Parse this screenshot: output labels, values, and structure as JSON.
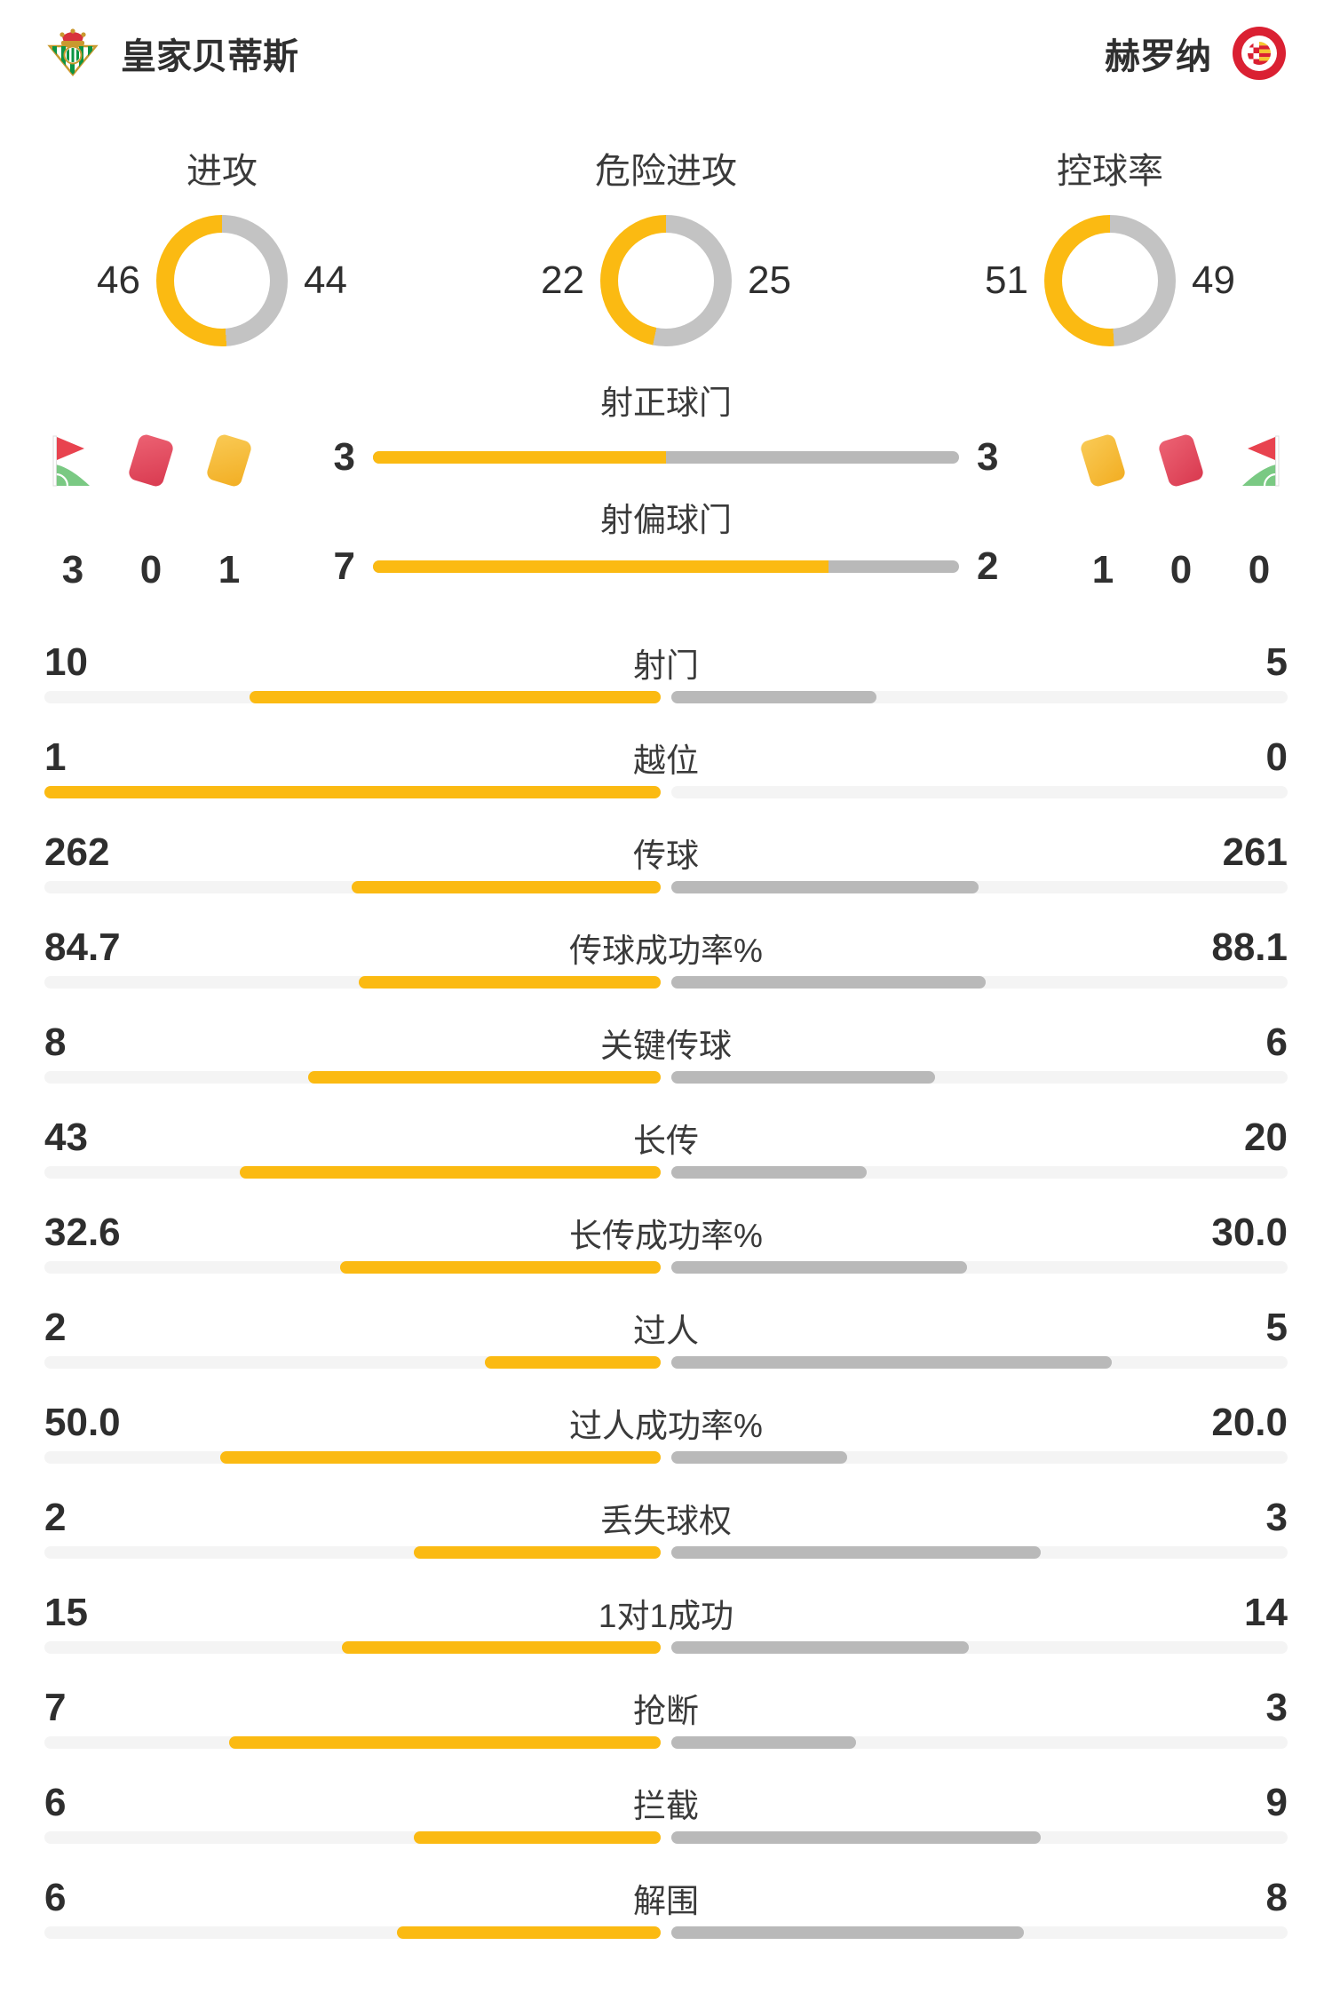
{
  "chart_data": {
    "type": "bar",
    "teams": {
      "home": "皇家贝蒂斯",
      "away": "赫罗纳"
    },
    "donuts": [
      {
        "label": "进攻",
        "home": 46,
        "away": 44
      },
      {
        "label": "危险进攻",
        "home": 22,
        "away": 25
      },
      {
        "label": "控球率",
        "home": 51,
        "away": 49
      }
    ],
    "discipline": {
      "home": {
        "corners": 3,
        "red_cards": 0,
        "yellow_cards": 1
      },
      "away": {
        "yellow_cards": 1,
        "red_cards": 0,
        "corners": 0
      }
    },
    "shots": [
      {
        "label": "射正球门",
        "home": 3,
        "away": 3
      },
      {
        "label": "射偏球门",
        "home": 7,
        "away": 2
      }
    ],
    "stats": [
      {
        "label": "射门",
        "home": "10",
        "away": "5"
      },
      {
        "label": "越位",
        "home": "1",
        "away": "0"
      },
      {
        "label": "传球",
        "home": "262",
        "away": "261"
      },
      {
        "label": "传球成功率%",
        "home": "84.7",
        "away": "88.1"
      },
      {
        "label": "关键传球",
        "home": "8",
        "away": "6"
      },
      {
        "label": "长传",
        "home": "43",
        "away": "20"
      },
      {
        "label": "长传成功率%",
        "home": "32.6",
        "away": "30.0"
      },
      {
        "label": "过人",
        "home": "2",
        "away": "5"
      },
      {
        "label": "过人成功率%",
        "home": "50.0",
        "away": "20.0"
      },
      {
        "label": "丢失球权",
        "home": "2",
        "away": "3"
      },
      {
        "label": "1对1成功",
        "home": "15",
        "away": "14"
      },
      {
        "label": "抢断",
        "home": "7",
        "away": "3"
      },
      {
        "label": "拦截",
        "home": "6",
        "away": "9"
      },
      {
        "label": "解围",
        "home": "6",
        "away": "8"
      }
    ],
    "colors": {
      "home_accent": "#fbba12",
      "away_bar": "#b9b9b9",
      "donut_away": "#c3c3c3",
      "bar_track": "#f4f4f4",
      "text": "#303030",
      "red_card": "#d93a50",
      "yellow_card": "#f2ae23",
      "corner_flag_red": "#e8434f",
      "corner_flag_green": "#7ac983",
      "home_logo_green": "#0b9444",
      "away_logo_red": "#da2032"
    },
    "icons": {
      "home_logo": "betis-crest-icon",
      "away_logo": "girona-badge-icon",
      "corner": "corner-flag-icon",
      "red": "red-card-icon",
      "yellow": "yellow-card-icon"
    }
  }
}
